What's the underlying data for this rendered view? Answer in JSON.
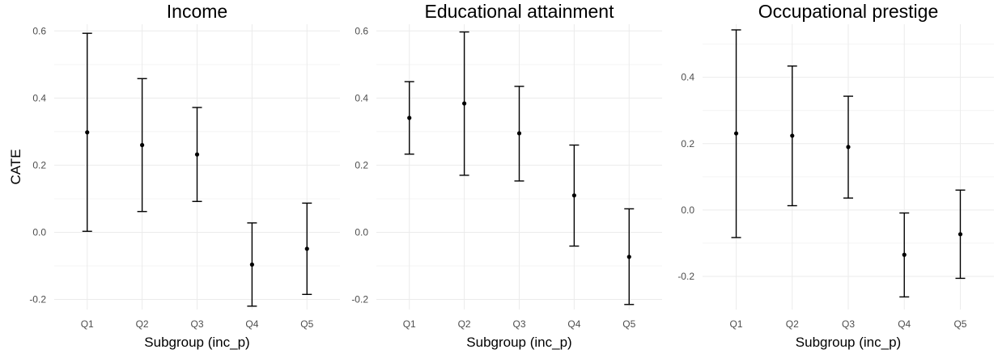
{
  "chart_data": [
    {
      "type": "scatter",
      "title": "Income",
      "xlabel": "Subgroup (inc_p)",
      "ylabel": "CATE",
      "categories": [
        "Q1",
        "Q2",
        "Q3",
        "Q4",
        "Q5"
      ],
      "estimate": [
        0.298,
        0.26,
        0.232,
        -0.096,
        -0.049
      ],
      "lower": [
        0.003,
        0.062,
        0.092,
        -0.22,
        -0.185
      ],
      "upper": [
        0.593,
        0.458,
        0.372,
        0.028,
        0.087
      ],
      "ylim": [
        -0.23,
        0.62
      ],
      "yticks": [
        -0.2,
        0.0,
        0.2,
        0.4,
        0.6
      ],
      "ytick_labels": [
        "-0.2",
        "0.0",
        "0.2",
        "0.4",
        "0.6"
      ],
      "grid": true
    },
    {
      "type": "scatter",
      "title": "Educational attainment",
      "xlabel": "Subgroup (inc_p)",
      "ylabel": "",
      "categories": [
        "Q1",
        "Q2",
        "Q3",
        "Q4",
        "Q5"
      ],
      "estimate": [
        0.341,
        0.384,
        0.295,
        0.11,
        -0.073
      ],
      "lower": [
        0.233,
        0.17,
        0.153,
        -0.041,
        -0.215
      ],
      "upper": [
        0.449,
        0.597,
        0.435,
        0.26,
        0.07
      ],
      "ylim": [
        -0.23,
        0.62
      ],
      "yticks": [
        -0.2,
        0.0,
        0.2,
        0.4,
        0.6
      ],
      "ytick_labels": [
        "-0.2",
        "0.0",
        "0.2",
        "0.4",
        "0.6"
      ],
      "grid": true
    },
    {
      "type": "scatter",
      "title": "Occupational prestige",
      "xlabel": "Subgroup (inc_p)",
      "ylabel": "",
      "categories": [
        "Q1",
        "Q2",
        "Q3",
        "Q4",
        "Q5"
      ],
      "estimate": [
        0.231,
        0.224,
        0.19,
        -0.135,
        -0.073
      ],
      "lower": [
        -0.083,
        0.013,
        0.036,
        -0.262,
        -0.206
      ],
      "upper": [
        0.543,
        0.434,
        0.343,
        -0.009,
        0.06
      ],
      "ylim": [
        -0.3,
        0.56
      ],
      "yticks": [
        -0.2,
        0.0,
        0.2,
        0.4
      ],
      "ytick_labels": [
        "-0.2",
        "0.0",
        "0.2",
        "0.4"
      ],
      "grid": true
    }
  ]
}
